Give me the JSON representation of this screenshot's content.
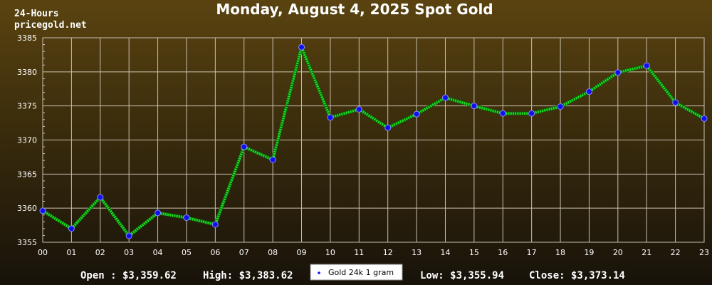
{
  "header": {
    "title": "Monday, August 4, 2025 Spot Gold",
    "period_label": "24-Hours",
    "source": "pricegold.net"
  },
  "stats": {
    "open": "Open : $3,359.62",
    "high": "High: $3,383.62",
    "low": "Low: $3,355.94",
    "close": "Close: $3,373.14"
  },
  "colors": {
    "line": "#22dd22",
    "marker_fill": "#1010ee",
    "grid": "#c8c0b0",
    "legend_bg": "#ffffff"
  },
  "chart_data": {
    "type": "line",
    "title": "Monday, August 4, 2025 Spot Gold",
    "xlabel": "",
    "ylabel": "",
    "categories": [
      "00",
      "01",
      "02",
      "03",
      "04",
      "05",
      "06",
      "07",
      "08",
      "09",
      "10",
      "11",
      "12",
      "13",
      "14",
      "15",
      "16",
      "17",
      "18",
      "19",
      "20",
      "21",
      "22",
      "23"
    ],
    "ylim": [
      3355,
      3385
    ],
    "yticks": [
      3355,
      3360,
      3365,
      3370,
      3375,
      3380,
      3385
    ],
    "grid": true,
    "legend_position": "bottom-center",
    "series": [
      {
        "name": "Gold 24k 1 gram",
        "values": [
          3359.62,
          3357.0,
          3361.6,
          3355.94,
          3359.3,
          3358.6,
          3357.6,
          3369.0,
          3367.1,
          3383.62,
          3373.3,
          3374.5,
          3371.8,
          3373.8,
          3376.2,
          3375.0,
          3373.9,
          3373.9,
          3374.9,
          3377.1,
          3379.9,
          3380.9,
          3375.5,
          3373.14
        ]
      }
    ]
  }
}
